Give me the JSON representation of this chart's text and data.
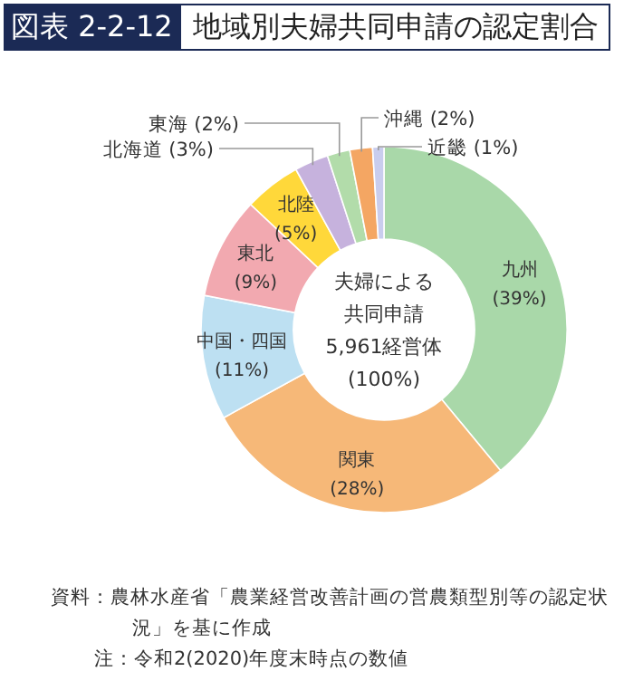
{
  "chart_data": {
    "type": "donut",
    "title": "図表 2-2-12",
    "subtitle": "地域別夫婦共同申請の認定割合",
    "categories": [
      "九州",
      "関東",
      "中国・四国",
      "東北",
      "北陸",
      "北海道",
      "東海",
      "沖縄",
      "近畿"
    ],
    "values": [
      39,
      28,
      11,
      9,
      5,
      3,
      2,
      2,
      1
    ],
    "value_labels": [
      "(39%)",
      "(28%)",
      "(11%)",
      "(9%)",
      "(5%)",
      "(3%)",
      "(2%)",
      "(2%)",
      "(1%)"
    ],
    "colors": [
      "#a9d8a9",
      "#f6b878",
      "#bde0f2",
      "#f2a9b0",
      "#ffd83a",
      "#c6b2dd",
      "#b2dcaa",
      "#f4a663",
      "#c9cdee"
    ],
    "annotations": [
      "夫婦による",
      "共同申請",
      "5,961経営体",
      "(100%)",
      "資料：農林水産省「農業経営改善計画の営農類型別等の認定状況」を基に作成",
      "注：令和2(2020)年度末時点の数値"
    ]
  }
}
